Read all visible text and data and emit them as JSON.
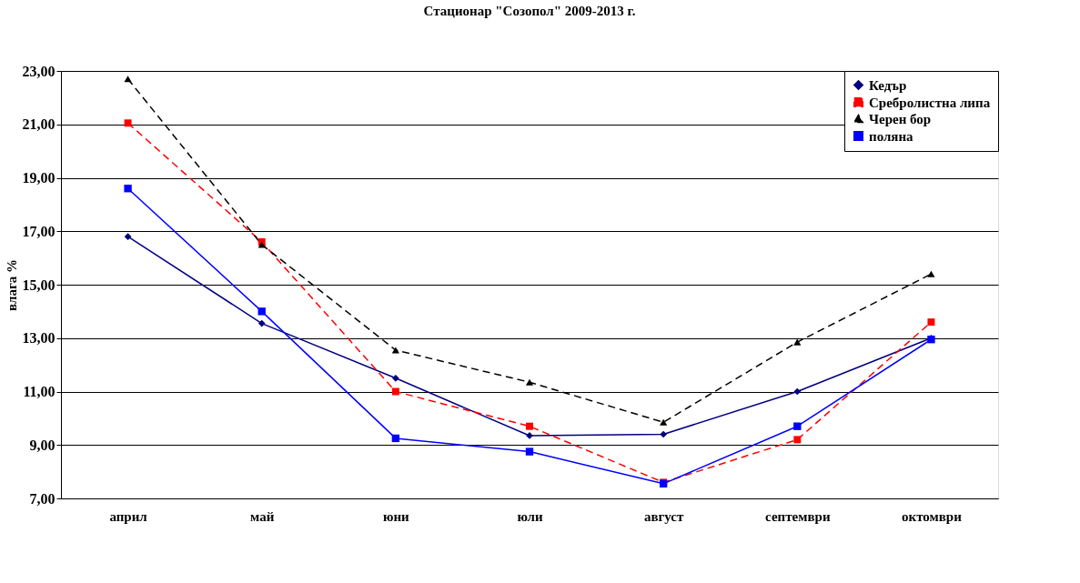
{
  "chart_data": {
    "type": "line",
    "title": "Стационар \"Созопол\" 2009-2013 г.",
    "ylabel": "влага %",
    "categories": [
      "април",
      "май",
      "юни",
      "юли",
      "август",
      "септември",
      "октомври"
    ],
    "series": [
      {
        "name": "Кедър",
        "color": "#000080",
        "marker": "diamond",
        "line_style": "solid",
        "values": [
          16.8,
          13.55,
          11.5,
          9.35,
          9.4,
          11.0,
          13.0
        ]
      },
      {
        "name": "Сребролистна липа",
        "color": "#ff0000",
        "marker": "square",
        "line_style": "dashed",
        "values": [
          21.05,
          16.6,
          11.0,
          9.7,
          7.6,
          9.2,
          13.6
        ]
      },
      {
        "name": "Черен бор",
        "color": "#000000",
        "marker": "triangle",
        "line_style": "dashed",
        "values": [
          22.7,
          16.5,
          12.55,
          11.35,
          9.85,
          12.85,
          15.4
        ]
      },
      {
        "name": "поляна",
        "color": "#0000ff",
        "marker": "square",
        "line_style": "solid",
        "values": [
          18.6,
          14.0,
          9.25,
          8.75,
          7.55,
          9.7,
          12.95
        ]
      }
    ],
    "ylim": [
      7,
      23
    ],
    "yticks": [
      {
        "value": 7,
        "label": "7,00"
      },
      {
        "value": 9,
        "label": "9,00"
      },
      {
        "value": 11,
        "label": "11,00"
      },
      {
        "value": 13,
        "label": "13,00"
      },
      {
        "value": 15,
        "label": "15,00"
      },
      {
        "value": 17,
        "label": "17,00"
      },
      {
        "value": 19,
        "label": "19,00"
      },
      {
        "value": 21,
        "label": "21,00"
      },
      {
        "value": 23,
        "label": "23,00"
      }
    ],
    "grid": "y",
    "legend": "top right"
  }
}
